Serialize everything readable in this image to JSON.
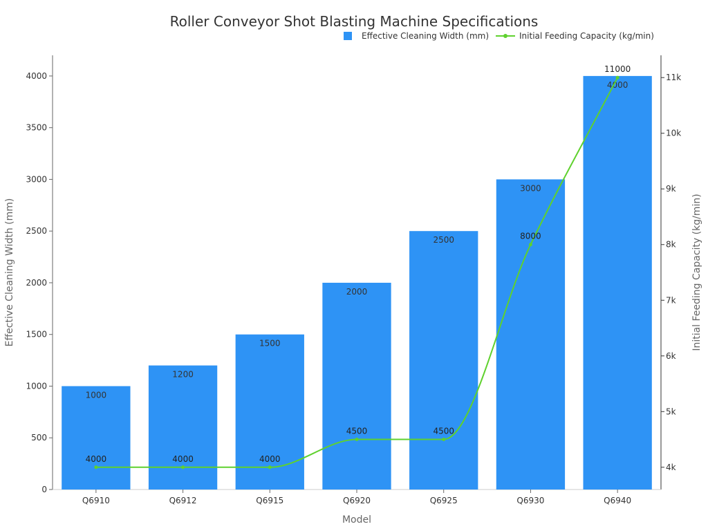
{
  "chart_data": {
    "type": "bar",
    "title": "Roller Conveyor Shot Blasting Machine Specifications",
    "xlabel": "Model",
    "ylabel": "Effective Cleaning Width (mm)",
    "y2label": "Initial Feeding Capacity (kg/min)",
    "categories": [
      "Q6910",
      "Q6912",
      "Q6915",
      "Q6920",
      "Q6925",
      "Q6930",
      "Q6940"
    ],
    "series": [
      {
        "name": "Effective Cleaning Width (mm)",
        "type": "bar",
        "axis": "left",
        "color": "#2e93f5",
        "values": [
          1000,
          1200,
          1500,
          2000,
          2500,
          3000,
          4000
        ],
        "labels": [
          "1000",
          "1200",
          "1500",
          "2000",
          "2500",
          "3000",
          "4000"
        ]
      },
      {
        "name": "Initial Feeding Capacity (kg/min)",
        "type": "line",
        "axis": "right",
        "color": "#5fd12e",
        "smooth": true,
        "values": [
          4000,
          4000,
          4000,
          4500,
          4500,
          8000,
          11000
        ],
        "labels": [
          "4000",
          "4000",
          "4000",
          "4500",
          "4500",
          "8000",
          "11000"
        ]
      }
    ],
    "ylim": [
      0,
      4200
    ],
    "y_ticks": [
      0,
      500,
      1000,
      1500,
      2000,
      2500,
      3000,
      3500,
      4000
    ],
    "y2lim": [
      3600,
      11400
    ],
    "y2_ticks": [
      4000,
      5000,
      6000,
      7000,
      8000,
      9000,
      10000,
      11000
    ],
    "y2_tick_labels": [
      "4k",
      "5k",
      "6k",
      "7k",
      "8k",
      "9k",
      "10k",
      "11k"
    ],
    "grid": false,
    "legend_position": "top-right"
  }
}
